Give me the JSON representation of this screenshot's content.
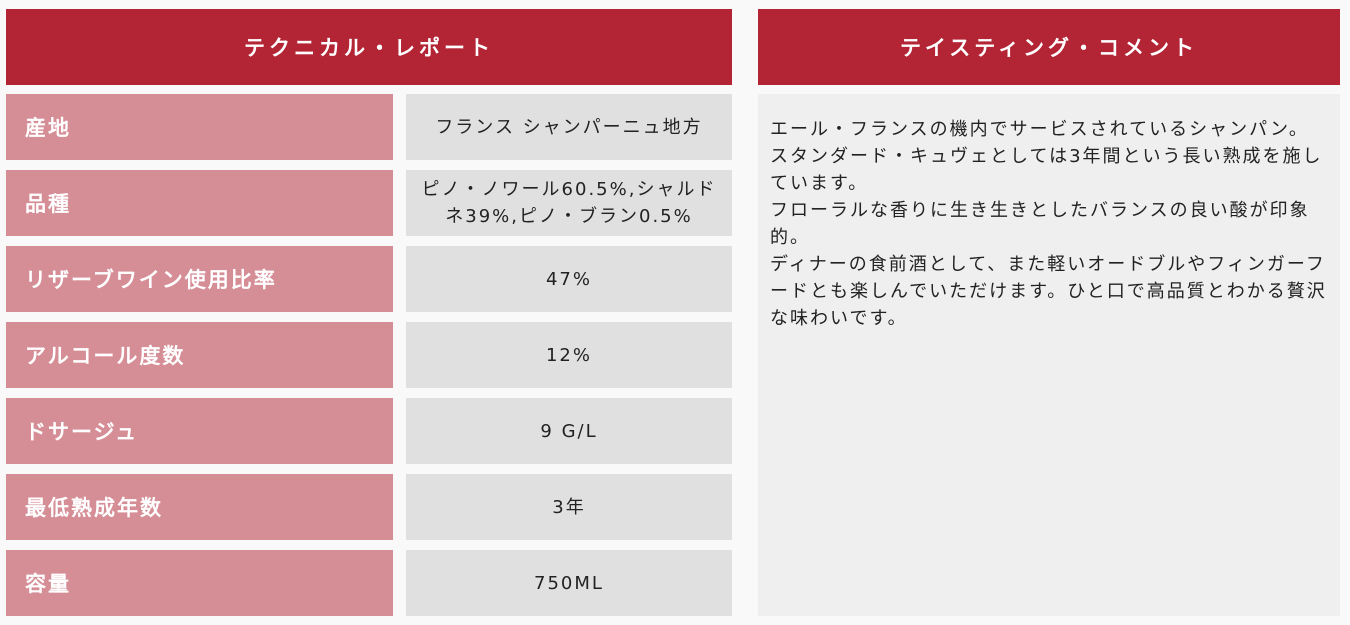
{
  "technical": {
    "title": "テクニカル・レポート",
    "rows": [
      {
        "label": "産地",
        "value": "フランス シャンパーニュ地方"
      },
      {
        "label": "品種",
        "value": "ピノ・ノワール60.5%,シャルドネ39%,ピノ・ブラン0.5%"
      },
      {
        "label": "リザーブワイン使用比率",
        "value": "47%"
      },
      {
        "label": "アルコール度数",
        "value": "12%"
      },
      {
        "label": "ドサージュ",
        "value": "9 G/L"
      },
      {
        "label": "最低熟成年数",
        "value": "3年"
      },
      {
        "label": "容量",
        "value": "750ML"
      }
    ]
  },
  "tasting": {
    "title": "テイスティング・コメント",
    "paragraphs": [
      "エール・フランスの機内でサービスされているシャンパン。",
      "スタンダード・キュヴェとしては3年間という長い熟成を施しています。",
      "フローラルな香りに生き生きとしたバランスの良い酸が印象的。",
      "ディナーの食前酒として、また軽いオードブルやフィンガーフードとも楽しんでいただけます。ひと口で高品質とわかる贅沢な味わいです。"
    ]
  }
}
